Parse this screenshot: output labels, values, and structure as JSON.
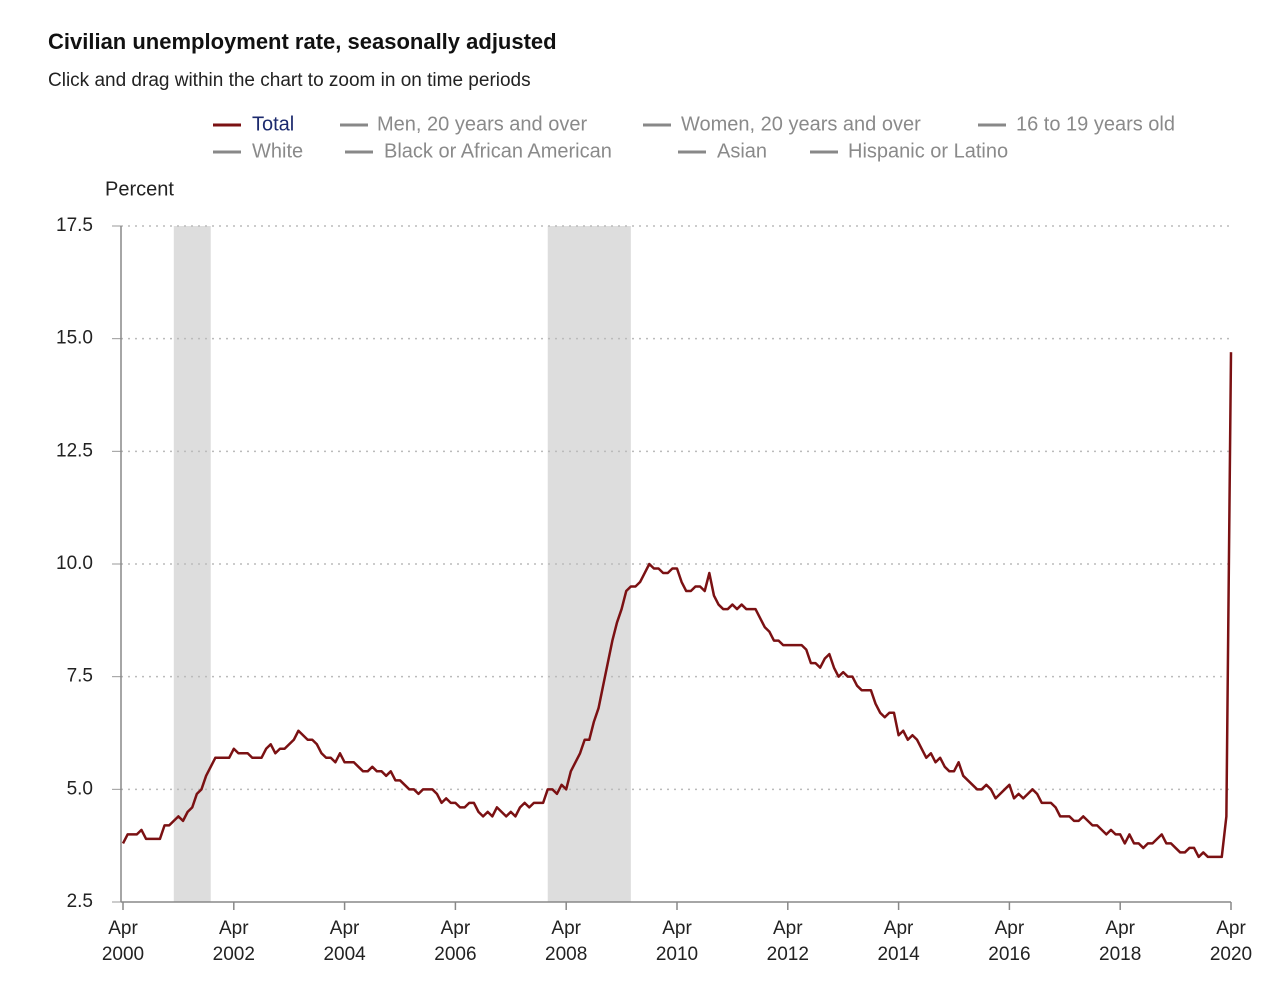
{
  "chart_data": {
    "type": "line",
    "title": "Civilian unemployment rate, seasonally adjusted",
    "subtitle": "Click and drag within the chart to zoom in on time periods",
    "y_label": "Percent",
    "x": [
      "2000-04",
      "2000-05",
      "2000-06",
      "2000-07",
      "2000-08",
      "2000-09",
      "2000-10",
      "2000-11",
      "2000-12",
      "2001-01",
      "2001-02",
      "2001-03",
      "2001-04",
      "2001-05",
      "2001-06",
      "2001-07",
      "2001-08",
      "2001-09",
      "2001-10",
      "2001-11",
      "2001-12",
      "2002-01",
      "2002-02",
      "2002-03",
      "2002-04",
      "2002-05",
      "2002-06",
      "2002-07",
      "2002-08",
      "2002-09",
      "2002-10",
      "2002-11",
      "2002-12",
      "2003-01",
      "2003-02",
      "2003-03",
      "2003-04",
      "2003-05",
      "2003-06",
      "2003-07",
      "2003-08",
      "2003-09",
      "2003-10",
      "2003-11",
      "2003-12",
      "2004-01",
      "2004-02",
      "2004-03",
      "2004-04",
      "2004-05",
      "2004-06",
      "2004-07",
      "2004-08",
      "2004-09",
      "2004-10",
      "2004-11",
      "2004-12",
      "2005-01",
      "2005-02",
      "2005-03",
      "2005-04",
      "2005-05",
      "2005-06",
      "2005-07",
      "2005-08",
      "2005-09",
      "2005-10",
      "2005-11",
      "2005-12",
      "2006-01",
      "2006-02",
      "2006-03",
      "2006-04",
      "2006-05",
      "2006-06",
      "2006-07",
      "2006-08",
      "2006-09",
      "2006-10",
      "2006-11",
      "2006-12",
      "2007-01",
      "2007-02",
      "2007-03",
      "2007-04",
      "2007-05",
      "2007-06",
      "2007-07",
      "2007-08",
      "2007-09",
      "2007-10",
      "2007-11",
      "2007-12",
      "2008-01",
      "2008-02",
      "2008-03",
      "2008-04",
      "2008-05",
      "2008-06",
      "2008-07",
      "2008-08",
      "2008-09",
      "2008-10",
      "2008-11",
      "2008-12",
      "2009-01",
      "2009-02",
      "2009-03",
      "2009-04",
      "2009-05",
      "2009-06",
      "2009-07",
      "2009-08",
      "2009-09",
      "2009-10",
      "2009-11",
      "2009-12",
      "2010-01",
      "2010-02",
      "2010-03",
      "2010-04",
      "2010-05",
      "2010-06",
      "2010-07",
      "2010-08",
      "2010-09",
      "2010-10",
      "2010-11",
      "2010-12",
      "2011-01",
      "2011-02",
      "2011-03",
      "2011-04",
      "2011-05",
      "2011-06",
      "2011-07",
      "2011-08",
      "2011-09",
      "2011-10",
      "2011-11",
      "2011-12",
      "2012-01",
      "2012-02",
      "2012-03",
      "2012-04",
      "2012-05",
      "2012-06",
      "2012-07",
      "2012-08",
      "2012-09",
      "2012-10",
      "2012-11",
      "2012-12",
      "2013-01",
      "2013-02",
      "2013-03",
      "2013-04",
      "2013-05",
      "2013-06",
      "2013-07",
      "2013-08",
      "2013-09",
      "2013-10",
      "2013-11",
      "2013-12",
      "2014-01",
      "2014-02",
      "2014-03",
      "2014-04",
      "2014-05",
      "2014-06",
      "2014-07",
      "2014-08",
      "2014-09",
      "2014-10",
      "2014-11",
      "2014-12",
      "2015-01",
      "2015-02",
      "2015-03",
      "2015-04",
      "2015-05",
      "2015-06",
      "2015-07",
      "2015-08",
      "2015-09",
      "2015-10",
      "2015-11",
      "2015-12",
      "2016-01",
      "2016-02",
      "2016-03",
      "2016-04",
      "2016-05",
      "2016-06",
      "2016-07",
      "2016-08",
      "2016-09",
      "2016-10",
      "2016-11",
      "2016-12",
      "2017-01",
      "2017-02",
      "2017-03",
      "2017-04",
      "2017-05",
      "2017-06",
      "2017-07",
      "2017-08",
      "2017-09",
      "2017-10",
      "2017-11",
      "2017-12",
      "2018-01",
      "2018-02",
      "2018-03",
      "2018-04",
      "2018-05",
      "2018-06",
      "2018-07",
      "2018-08",
      "2018-09",
      "2018-10",
      "2018-11",
      "2018-12",
      "2019-01",
      "2019-02",
      "2019-03",
      "2019-04",
      "2019-05",
      "2019-06",
      "2019-07",
      "2019-08",
      "2019-09",
      "2019-10",
      "2019-11",
      "2019-12",
      "2020-01",
      "2020-02",
      "2020-03",
      "2020-04"
    ],
    "series": [
      {
        "name": "Total",
        "color": "#7b1113",
        "values": [
          3.8,
          4.0,
          4.0,
          4.0,
          4.1,
          3.9,
          3.9,
          3.9,
          3.9,
          4.2,
          4.2,
          4.3,
          4.4,
          4.3,
          4.5,
          4.6,
          4.9,
          5.0,
          5.3,
          5.5,
          5.7,
          5.7,
          5.7,
          5.7,
          5.9,
          5.8,
          5.8,
          5.8,
          5.7,
          5.7,
          5.7,
          5.9,
          6.0,
          5.8,
          5.9,
          5.9,
          6.0,
          6.1,
          6.3,
          6.2,
          6.1,
          6.1,
          6.0,
          5.8,
          5.7,
          5.7,
          5.6,
          5.8,
          5.6,
          5.6,
          5.6,
          5.5,
          5.4,
          5.4,
          5.5,
          5.4,
          5.4,
          5.3,
          5.4,
          5.2,
          5.2,
          5.1,
          5.0,
          5.0,
          4.9,
          5.0,
          5.0,
          5.0,
          4.9,
          4.7,
          4.8,
          4.7,
          4.7,
          4.6,
          4.6,
          4.7,
          4.7,
          4.5,
          4.4,
          4.5,
          4.4,
          4.6,
          4.5,
          4.4,
          4.5,
          4.4,
          4.6,
          4.7,
          4.6,
          4.7,
          4.7,
          4.7,
          5.0,
          5.0,
          4.9,
          5.1,
          5.0,
          5.4,
          5.6,
          5.8,
          6.1,
          6.1,
          6.5,
          6.8,
          7.3,
          7.8,
          8.3,
          8.7,
          9.0,
          9.4,
          9.5,
          9.5,
          9.6,
          9.8,
          10.0,
          9.9,
          9.9,
          9.8,
          9.8,
          9.9,
          9.9,
          9.6,
          9.4,
          9.4,
          9.5,
          9.5,
          9.4,
          9.8,
          9.3,
          9.1,
          9.0,
          9.0,
          9.1,
          9.0,
          9.1,
          9.0,
          9.0,
          9.0,
          8.8,
          8.6,
          8.5,
          8.3,
          8.3,
          8.2,
          8.2,
          8.2,
          8.2,
          8.2,
          8.1,
          7.8,
          7.8,
          7.7,
          7.9,
          8.0,
          7.7,
          7.5,
          7.6,
          7.5,
          7.5,
          7.3,
          7.2,
          7.2,
          7.2,
          6.9,
          6.7,
          6.6,
          6.7,
          6.7,
          6.2,
          6.3,
          6.1,
          6.2,
          6.1,
          5.9,
          5.7,
          5.8,
          5.6,
          5.7,
          5.5,
          5.4,
          5.4,
          5.6,
          5.3,
          5.2,
          5.1,
          5.0,
          5.0,
          5.1,
          5.0,
          4.8,
          4.9,
          5.0,
          5.1,
          4.8,
          4.9,
          4.8,
          4.9,
          5.0,
          4.9,
          4.7,
          4.7,
          4.7,
          4.6,
          4.4,
          4.4,
          4.4,
          4.3,
          4.3,
          4.4,
          4.3,
          4.2,
          4.2,
          4.1,
          4.0,
          4.1,
          4.0,
          4.0,
          3.8,
          4.0,
          3.8,
          3.8,
          3.7,
          3.8,
          3.8,
          3.9,
          4.0,
          3.8,
          3.8,
          3.7,
          3.6,
          3.6,
          3.7,
          3.7,
          3.5,
          3.6,
          3.5,
          3.5,
          3.5,
          3.5,
          4.4,
          14.7
        ]
      },
      {
        "name": "Men, 20 years and over",
        "color": "#888888",
        "hidden": true
      },
      {
        "name": "Women, 20 years and over",
        "color": "#888888",
        "hidden": true
      },
      {
        "name": "16 to 19 years old",
        "color": "#888888",
        "hidden": true
      },
      {
        "name": "White",
        "color": "#888888",
        "hidden": true
      },
      {
        "name": "Black or African American",
        "color": "#888888",
        "hidden": true
      },
      {
        "name": "Asian",
        "color": "#888888",
        "hidden": true
      },
      {
        "name": "Hispanic or Latino",
        "color": "#888888",
        "hidden": true
      }
    ],
    "shaded_periods": [
      [
        "2001-03",
        "2001-11"
      ],
      [
        "2007-12",
        "2009-06"
      ]
    ],
    "shade_color": "#dddddd",
    "xlim": [
      "2000-04",
      "2020-04"
    ],
    "xticks": [
      {
        "value": "2000-04",
        "label": "Apr 2000"
      },
      {
        "value": "2002-04",
        "label": "Apr 2002"
      },
      {
        "value": "2004-04",
        "label": "Apr 2004"
      },
      {
        "value": "2006-04",
        "label": "Apr 2006"
      },
      {
        "value": "2008-04",
        "label": "Apr 2008"
      },
      {
        "value": "2010-04",
        "label": "Apr 2010"
      },
      {
        "value": "2012-04",
        "label": "Apr 2012"
      },
      {
        "value": "2014-04",
        "label": "Apr 2014"
      },
      {
        "value": "2016-04",
        "label": "Apr 2016"
      },
      {
        "value": "2018-04",
        "label": "Apr 2018"
      },
      {
        "value": "2020-04",
        "label": "Apr 2020"
      }
    ],
    "ylim": [
      2.5,
      17.5
    ],
    "yticks": [
      2.5,
      {
        "value": 5,
        "label": "5.0"
      },
      7.5,
      {
        "value": 10,
        "label": "10.0"
      },
      12.5,
      {
        "value": 15,
        "label": "15.0"
      },
      17.5
    ],
    "grid": true
  }
}
